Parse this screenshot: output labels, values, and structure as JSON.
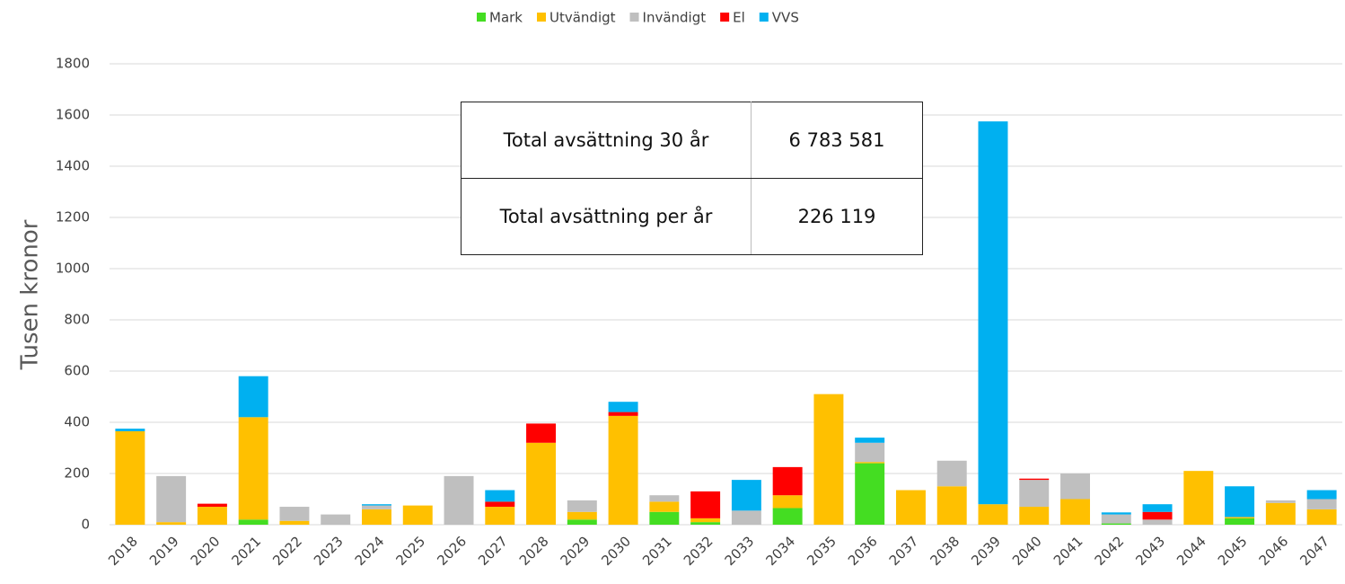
{
  "chart_data": {
    "type": "stacked_bar",
    "y_label": "Tusen kronor",
    "categories": [
      "2018",
      "2019",
      "2020",
      "2021",
      "2022",
      "2023",
      "2024",
      "2025",
      "2026",
      "2027",
      "2028",
      "2029",
      "2030",
      "2031",
      "2032",
      "2033",
      "2034",
      "2035",
      "2036",
      "2037",
      "2038",
      "2039",
      "2040",
      "2041",
      "2042",
      "2043",
      "2044",
      "2045",
      "2046",
      "2047"
    ],
    "series": [
      {
        "name": "Mark",
        "color": "#44dd22",
        "values": [
          0,
          0,
          0,
          20,
          0,
          0,
          0,
          0,
          0,
          0,
          0,
          20,
          0,
          50,
          10,
          0,
          65,
          0,
          240,
          0,
          0,
          0,
          0,
          0,
          5,
          0,
          0,
          25,
          0,
          0
        ]
      },
      {
        "name": "Utvändigt",
        "color": "#ffc000",
        "values": [
          365,
          10,
          70,
          400,
          15,
          0,
          60,
          75,
          0,
          70,
          320,
          30,
          425,
          40,
          15,
          0,
          50,
          510,
          5,
          135,
          150,
          80,
          70,
          100,
          0,
          0,
          210,
          5,
          85,
          60
        ]
      },
      {
        "name": "Invändigt",
        "color": "#bfbfbf",
        "values": [
          0,
          180,
          0,
          0,
          55,
          40,
          15,
          0,
          190,
          0,
          0,
          45,
          0,
          25,
          0,
          55,
          0,
          0,
          75,
          0,
          100,
          0,
          105,
          100,
          35,
          20,
          0,
          0,
          10,
          40
        ]
      },
      {
        "name": "El",
        "color": "#ff0000",
        "values": [
          0,
          0,
          12,
          0,
          0,
          0,
          0,
          0,
          0,
          20,
          75,
          0,
          15,
          0,
          105,
          0,
          110,
          0,
          0,
          0,
          0,
          0,
          5,
          0,
          0,
          30,
          0,
          0,
          0,
          0
        ]
      },
      {
        "name": "VVS",
        "color": "#00b0f0",
        "values": [
          10,
          0,
          0,
          160,
          0,
          0,
          5,
          0,
          0,
          45,
          0,
          0,
          40,
          0,
          0,
          120,
          0,
          0,
          20,
          0,
          0,
          1495,
          0,
          0,
          8,
          30,
          0,
          120,
          0,
          35
        ]
      }
    ],
    "ylim": [
      0,
      1800
    ],
    "yticks": [
      0,
      200,
      400,
      600,
      800,
      1000,
      1200,
      1400,
      1600,
      1800
    ],
    "grid": true,
    "legend": "top"
  },
  "table": {
    "rows": [
      [
        "Total avsättning 30 år",
        "6 783 581"
      ],
      [
        "Total avsättning per år",
        "226 119"
      ]
    ]
  }
}
